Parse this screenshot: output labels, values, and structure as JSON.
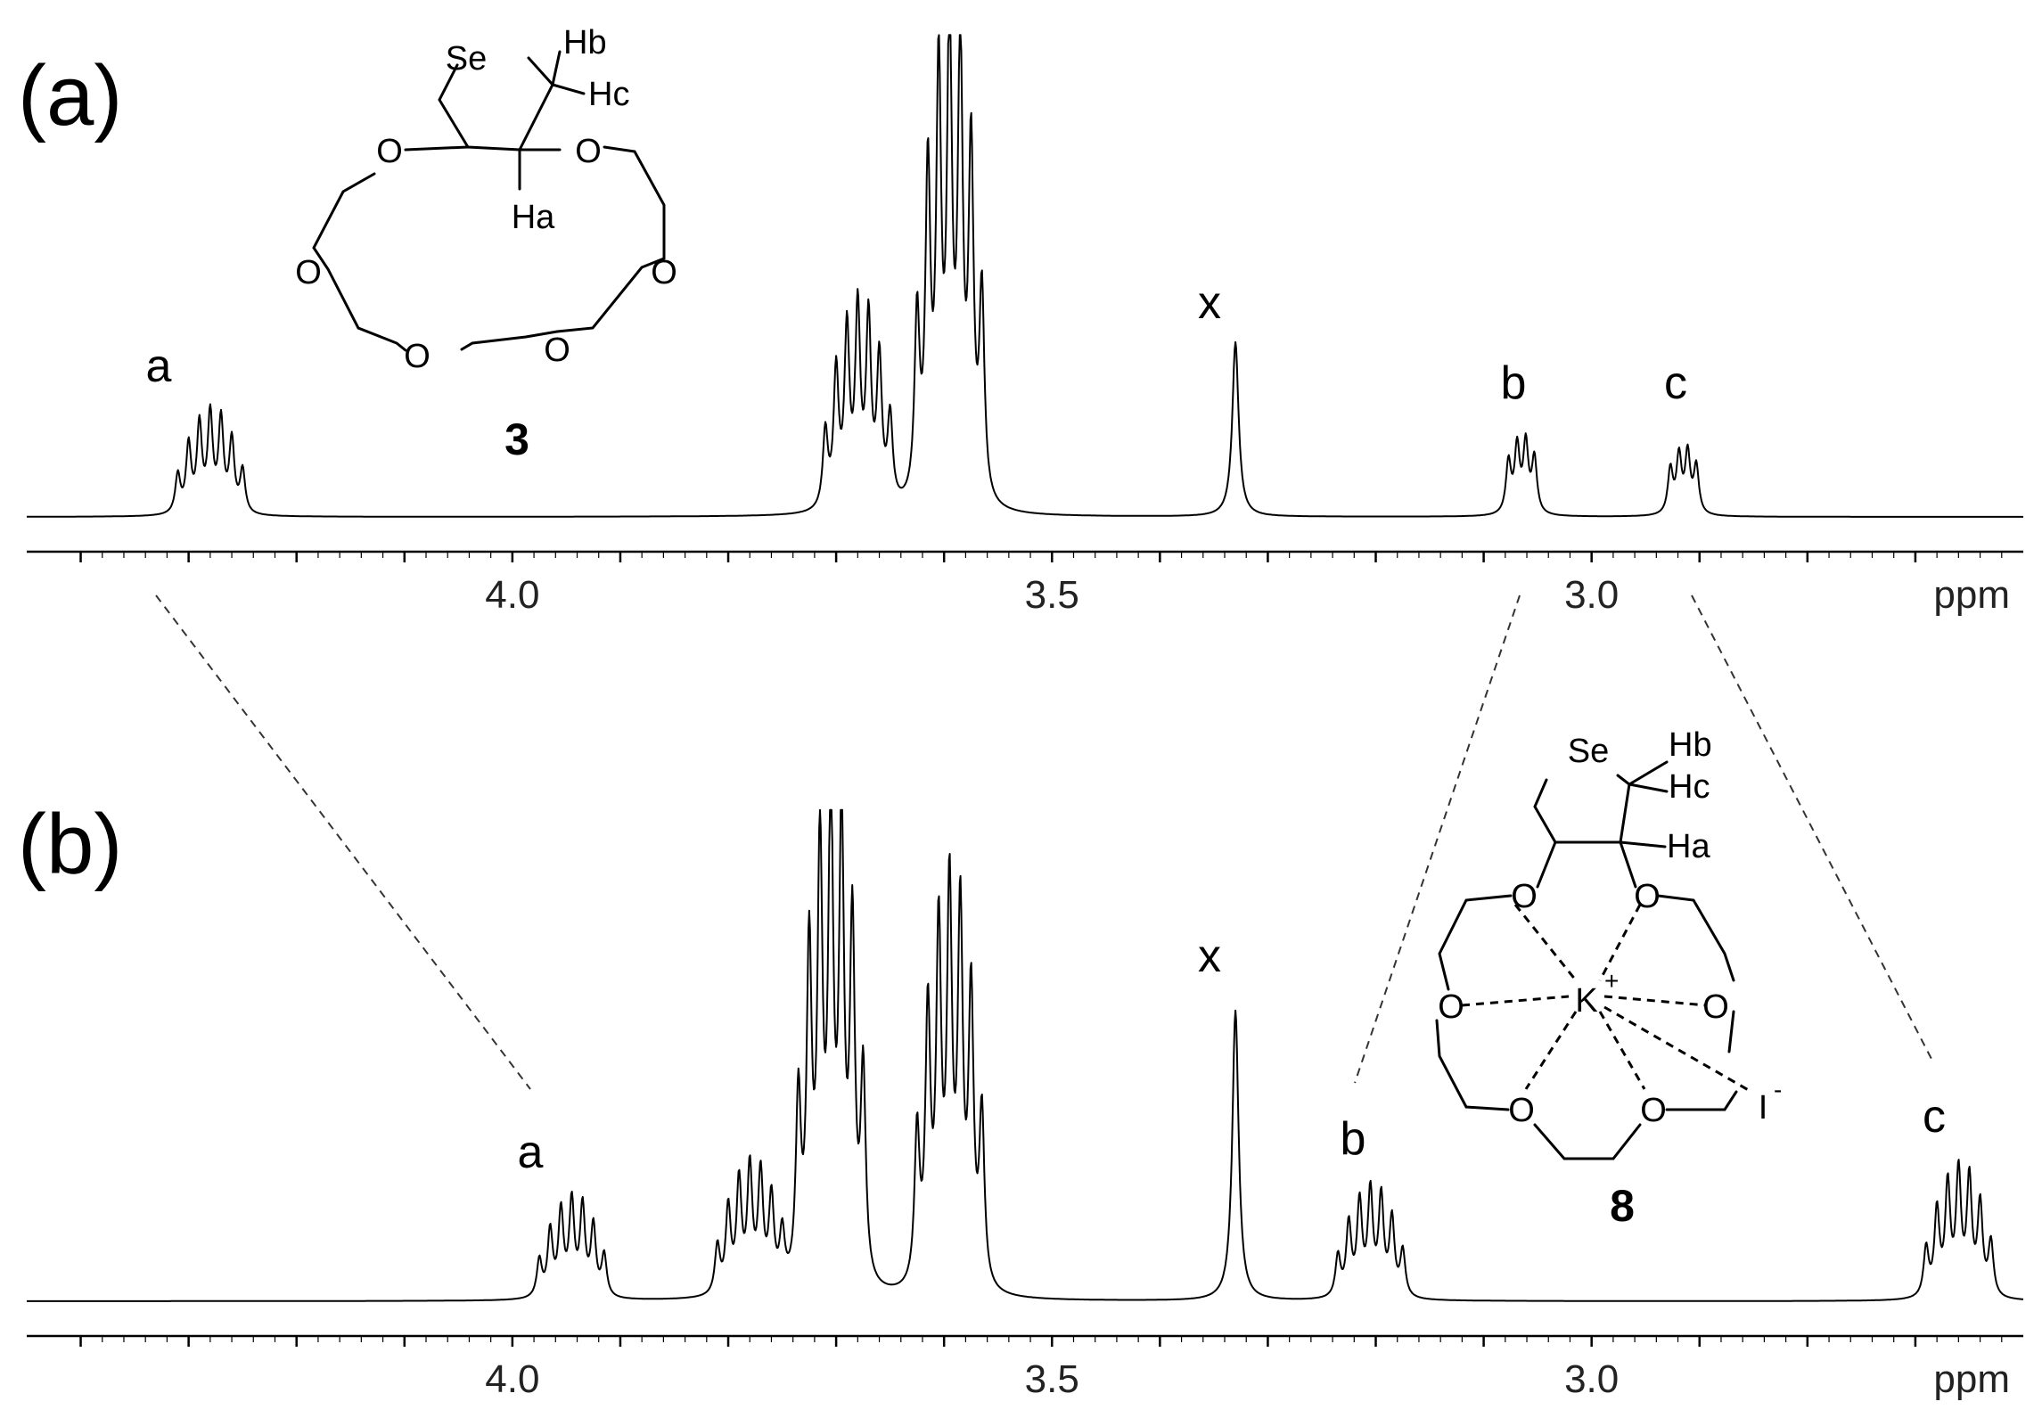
{
  "chart_data": [
    {
      "type": "line",
      "panel_label": "(a)",
      "compound_label": "3",
      "xlabel": "ppm",
      "xlim": [
        4.45,
        2.6
      ],
      "x_reversed": true,
      "ticks": [
        4.0,
        3.5,
        3.0
      ],
      "tick_labels": [
        "4.0",
        "3.5",
        "3.0"
      ],
      "peaks": [
        {
          "label": "a",
          "shift": 4.28,
          "height": 0.21,
          "multiplicity": "multiplet"
        },
        {
          "label": "",
          "shift": 3.68,
          "height": 0.42,
          "multiplicity": "multiplet"
        },
        {
          "label": "",
          "shift": 3.595,
          "height": 1.0,
          "multiplicity": "multiplet"
        },
        {
          "label": "x",
          "shift": 3.33,
          "height": 0.38,
          "multiplicity": "singlet"
        },
        {
          "label": "b",
          "shift": 3.065,
          "height": 0.15,
          "multiplicity": "doublet of doublets"
        },
        {
          "label": "c",
          "shift": 2.915,
          "height": 0.13,
          "multiplicity": "doublet of doublets"
        }
      ],
      "molecule": {
        "atoms": [
          "Se",
          "Hb",
          "Hc",
          "Ha",
          "O",
          "O",
          "O",
          "O",
          "O",
          "O"
        ]
      }
    },
    {
      "type": "line",
      "panel_label": "(b)",
      "compound_label": "8",
      "xlabel": "ppm",
      "xlim": [
        4.45,
        2.6
      ],
      "x_reversed": true,
      "ticks": [
        4.0,
        3.5,
        3.0
      ],
      "tick_labels": [
        "4.0",
        "3.5",
        "3.0"
      ],
      "peaks": [
        {
          "label": "a",
          "shift": 3.945,
          "height": 0.2,
          "multiplicity": "multiplet"
        },
        {
          "label": "",
          "shift": 3.78,
          "height": 0.26,
          "multiplicity": "multiplet"
        },
        {
          "label": "",
          "shift": 3.705,
          "height": 1.0,
          "multiplicity": "multiplet"
        },
        {
          "label": "",
          "shift": 3.595,
          "height": 0.82,
          "multiplicity": "multiplet"
        },
        {
          "label": "x",
          "shift": 3.33,
          "height": 0.62,
          "multiplicity": "singlet"
        },
        {
          "label": "b",
          "shift": 3.205,
          "height": 0.22,
          "multiplicity": "multiplet"
        },
        {
          "label": "c",
          "shift": 2.66,
          "height": 0.26,
          "multiplicity": "multiplet"
        }
      ],
      "molecule": {
        "atoms": [
          "Se",
          "Hb",
          "Hc",
          "Ha",
          "O",
          "O",
          "O",
          "O",
          "O",
          "O",
          "K",
          "+",
          "I",
          "-"
        ]
      }
    }
  ]
}
